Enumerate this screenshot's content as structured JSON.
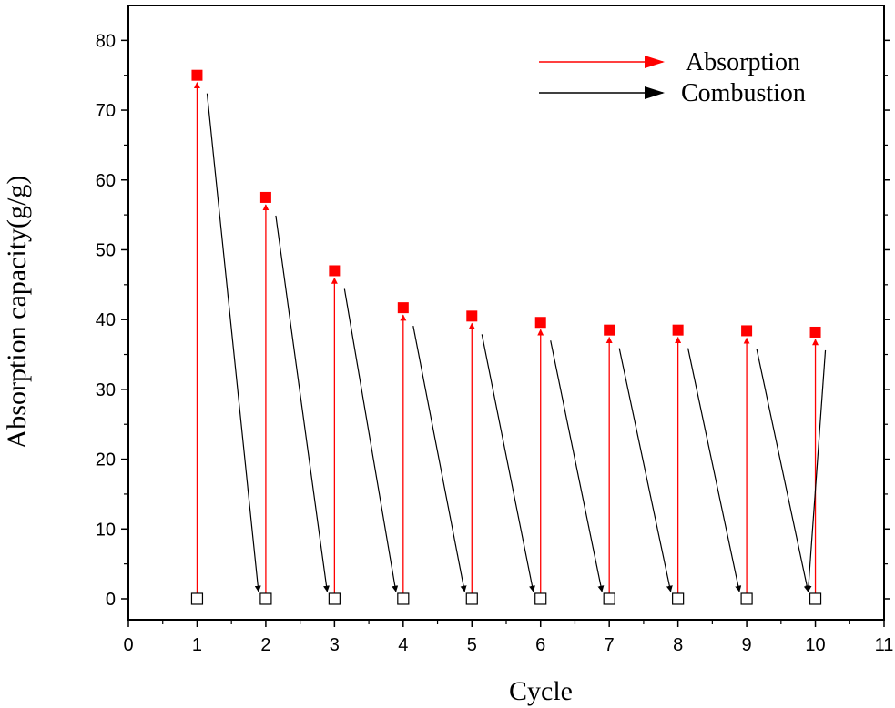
{
  "chart_data": {
    "type": "scatter",
    "xlabel": "Cycle",
    "ylabel": "Absorption capacity(g/g)",
    "xlim": [
      0,
      11
    ],
    "ylim": [
      -3,
      85
    ],
    "x_ticks": [
      "0",
      "1",
      "2",
      "3",
      "4",
      "5",
      "6",
      "7",
      "8",
      "9",
      "10",
      "11"
    ],
    "y_ticks": [
      "0",
      "10",
      "20",
      "30",
      "40",
      "50",
      "60",
      "70",
      "80"
    ],
    "grid": false,
    "legend": "top-right",
    "series": [
      {
        "name": "Absorption",
        "color": "#ff0000",
        "marker": "filled-square",
        "x": [
          1,
          2,
          3,
          4,
          5,
          6,
          7,
          8,
          9,
          10
        ],
        "y": [
          75.0,
          57.5,
          47.0,
          41.7,
          40.5,
          39.6,
          38.5,
          38.5,
          38.4,
          38.2
        ]
      },
      {
        "name": "Combustion",
        "color": "#000000",
        "marker": "open-square",
        "x": [
          1,
          2,
          3,
          4,
          5,
          6,
          7,
          8,
          9,
          10
        ],
        "y": [
          0,
          0,
          0,
          0,
          0,
          0,
          0,
          0,
          0,
          0
        ]
      }
    ]
  }
}
